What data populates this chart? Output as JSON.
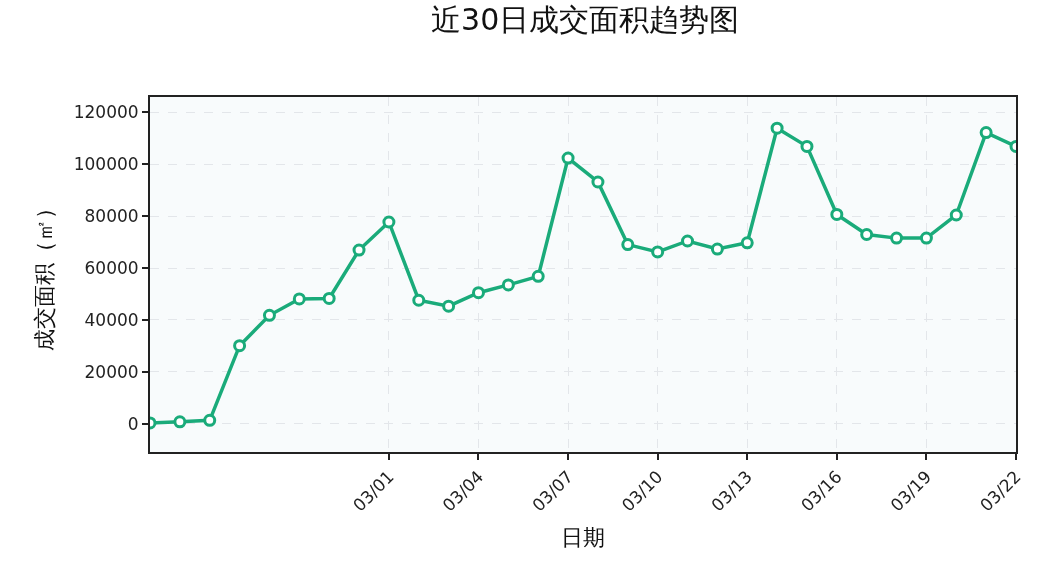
{
  "chart_data": {
    "type": "line",
    "title": "近30日成交面积趋势图",
    "xlabel": "日期",
    "ylabel": "成交面积（㎡）",
    "x": [
      "--02-21",
      "--02-22",
      "--02-23",
      "--02-24",
      "--02-25",
      "--02-26",
      "--02-27",
      "--02-28",
      "--03-01",
      "--03-02",
      "--03-03",
      "--03-04",
      "--03-05",
      "--03-06",
      "--03-07",
      "--03-08",
      "--03-09",
      "--03-10",
      "--03-11",
      "--03-12",
      "--03-13",
      "--03-14",
      "--03-15",
      "--03-16",
      "--03-17",
      "--03-18",
      "--03-19",
      "--03-20",
      "--03-21",
      "--03-22"
    ],
    "series": [
      {
        "color": "#1aab7a",
        "values": [
          400,
          800,
          1400,
          30100,
          41800,
          48100,
          48300,
          66900,
          77700,
          47600,
          45300,
          50500,
          53500,
          56800,
          102300,
          93100,
          69000,
          66200,
          70400,
          67300,
          69700,
          113800,
          106800,
          80600,
          72900,
          71500,
          71500,
          80400,
          112100,
          106800
        ]
      }
    ],
    "xlim": [
      "--02-21",
      "--03-22"
    ],
    "xticks": [
      {
        "value": "--03-01",
        "label": "03/01"
      },
      {
        "value": "--03-04",
        "label": "03/04"
      },
      {
        "value": "--03-07",
        "label": "03/07"
      },
      {
        "value": "--03-10",
        "label": "03/10"
      },
      {
        "value": "--03-13",
        "label": "03/13"
      },
      {
        "value": "--03-16",
        "label": "03/16"
      },
      {
        "value": "--03-19",
        "label": "03/19"
      },
      {
        "value": "--03-22",
        "label": "03/22"
      }
    ],
    "ylim": [
      -10800,
      125800
    ],
    "yticks": [
      0,
      20000,
      40000,
      60000,
      80000,
      100000,
      120000
    ],
    "grid": true,
    "marker": "circle",
    "line_style": "solid"
  }
}
